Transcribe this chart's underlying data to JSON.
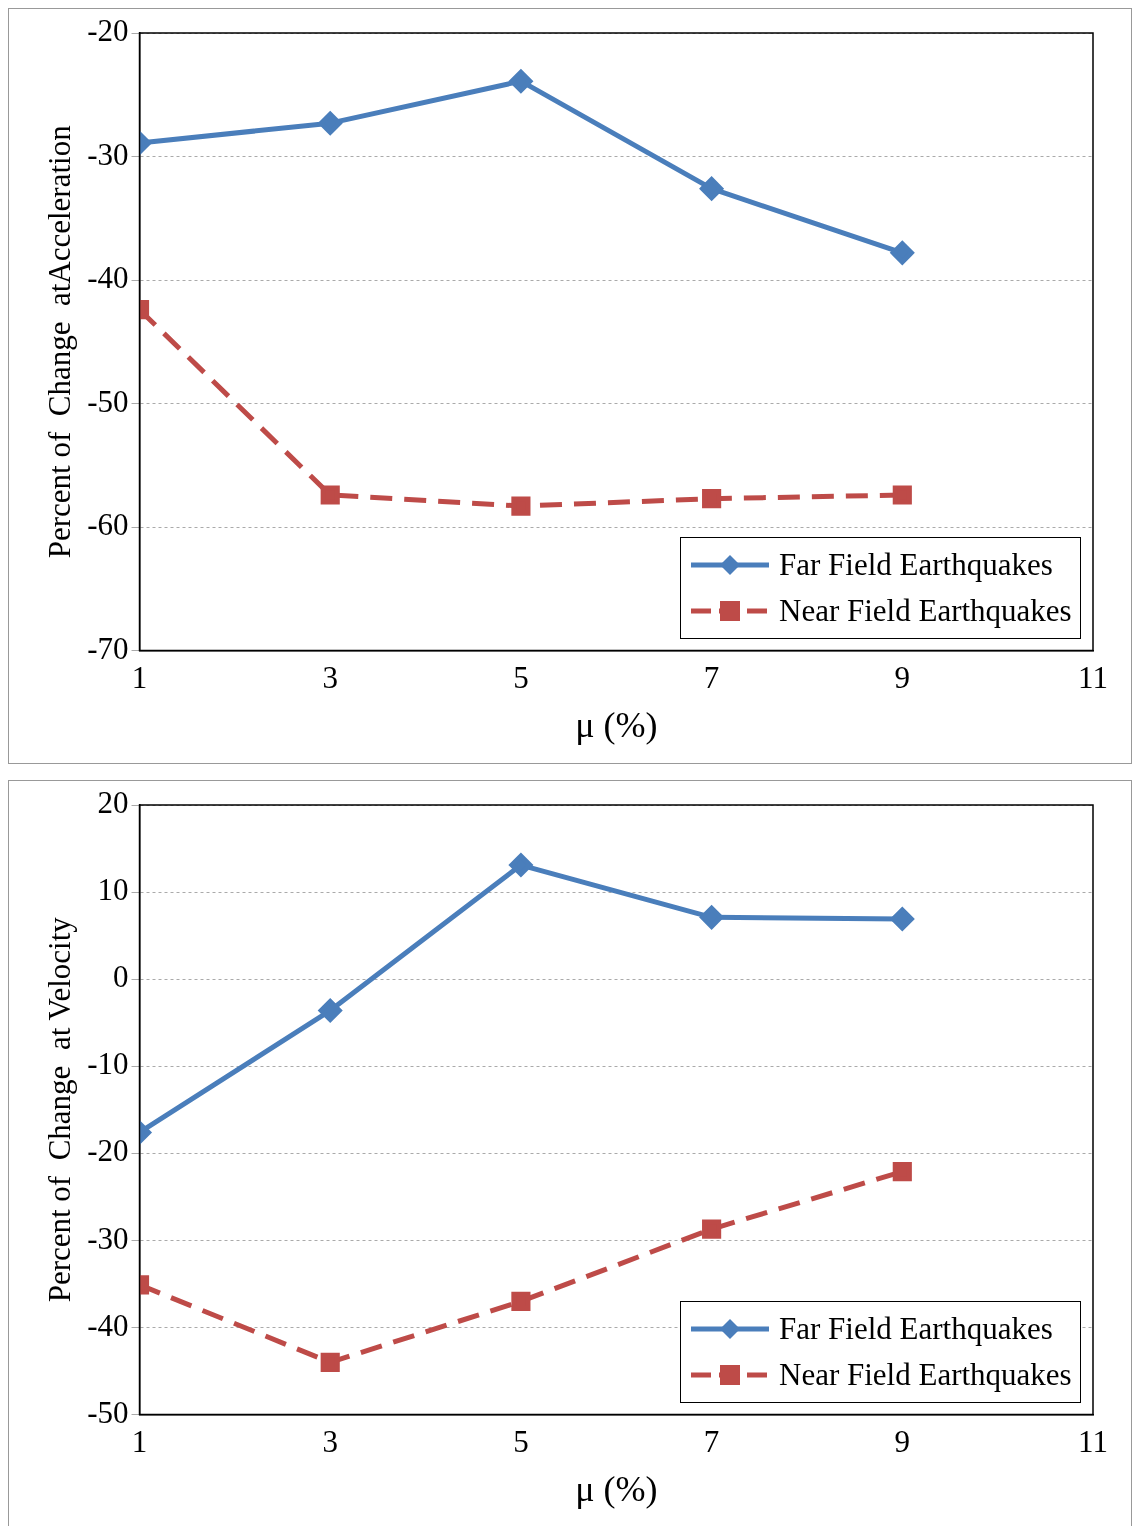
{
  "chart_data": [
    {
      "type": "line",
      "xlabel": "μ (%)",
      "ylabel": "Percent of  Change  atAcceleration",
      "x": [
        1,
        3,
        5,
        7,
        9
      ],
      "xlim": [
        1,
        11
      ],
      "xticks": [
        1,
        3,
        5,
        7,
        9,
        11
      ],
      "ylim": [
        -70,
        -20
      ],
      "yticks": [
        -70,
        -60,
        -50,
        -40,
        -30,
        -20
      ],
      "grid": "y",
      "legend": "bottom right",
      "series": [
        {
          "name": "Far Field Earthquakes",
          "color": "#4a7ebb",
          "marker": "diamond",
          "line_style": "solid",
          "values": [
            -28.9,
            -27.3,
            -23.9,
            -32.6,
            -37.8
          ]
        },
        {
          "name": "Near Field Earthquakes",
          "color": "#be4b48",
          "marker": "square",
          "line_style": "dashed",
          "values": [
            -42.4,
            -57.4,
            -58.3,
            -57.7,
            -57.4
          ]
        }
      ]
    },
    {
      "type": "line",
      "xlabel": "μ (%)",
      "ylabel": "Percent of  Change  at Velocity",
      "x": [
        1,
        3,
        5,
        7,
        9
      ],
      "xlim": [
        1,
        11
      ],
      "xticks": [
        1,
        3,
        5,
        7,
        9,
        11
      ],
      "ylim": [
        -50,
        20
      ],
      "yticks": [
        -50,
        -40,
        -30,
        -20,
        -10,
        0,
        10,
        20
      ],
      "grid": "y",
      "legend": "bottom right",
      "series": [
        {
          "name": "Far Field Earthquakes",
          "color": "#4a7ebb",
          "marker": "diamond",
          "line_style": "solid",
          "values": [
            -17.6,
            -3.6,
            13.1,
            7.1,
            6.9
          ]
        },
        {
          "name": "Near Field Earthquakes",
          "color": "#be4b48",
          "marker": "square",
          "line_style": "dashed",
          "values": [
            -35.1,
            -44.0,
            -37.0,
            -28.7,
            -22.1
          ]
        }
      ]
    }
  ]
}
